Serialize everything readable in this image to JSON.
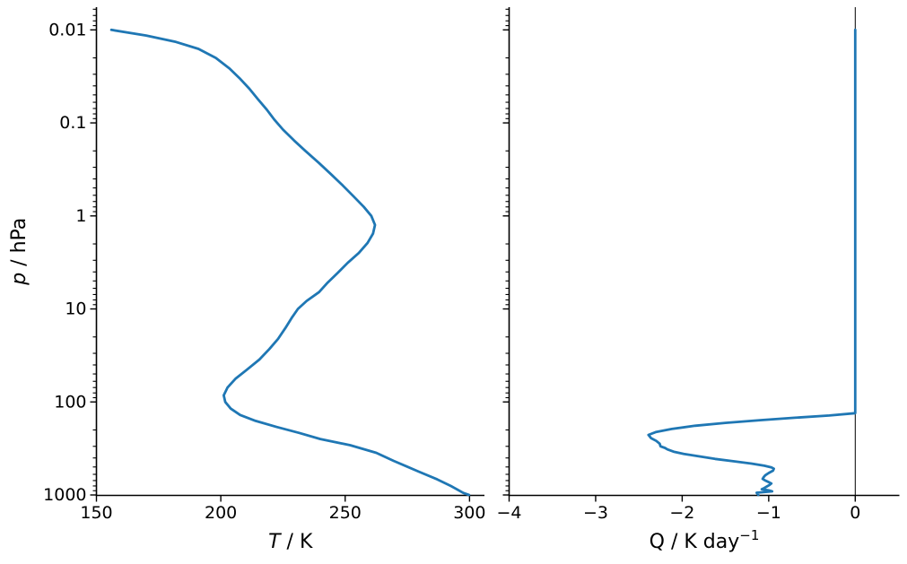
{
  "figure": {
    "background": "#ffffff",
    "curve_color": "#1f77b4",
    "axis_color": "#000000"
  },
  "chart_data": [
    {
      "id": "temperature-profile",
      "type": "line",
      "title": "",
      "xlabel": {
        "var": "T",
        "var_italic": true,
        "sep": " / ",
        "unit": "K",
        "sup": ""
      },
      "ylabel": {
        "var": "p",
        "var_italic": true,
        "sep": " / ",
        "unit": "hPa",
        "sup": ""
      },
      "xlim": [
        150,
        306
      ],
      "xticks": [
        150,
        200,
        250,
        300
      ],
      "xtick_labels": [
        "150",
        "200",
        "250",
        "300"
      ],
      "yscale": "log",
      "y_axis_inverted": true,
      "ylim_bottom_top": [
        1011,
        0.0057
      ],
      "yticks": [
        0.01,
        0.1,
        1,
        10,
        100,
        1000
      ],
      "ytick_labels": [
        "0.01",
        "0.1",
        "1",
        "10",
        "100",
        "1000"
      ],
      "y_minor_ticks": true,
      "grid": false,
      "legend": null,
      "axvline_x": null,
      "series": [
        {
          "name": "temperature",
          "color": "#1f77b4",
          "point_format": [
            "pressure_hPa",
            "T_K"
          ],
          "points": [
            [
              0.01,
              156.0
            ],
            [
              0.0115,
              170.0
            ],
            [
              0.0135,
              182.0
            ],
            [
              0.016,
              191.0
            ],
            [
              0.02,
              198.0
            ],
            [
              0.026,
              203.5
            ],
            [
              0.033,
              207.5
            ],
            [
              0.043,
              211.5
            ],
            [
              0.056,
              215.0
            ],
            [
              0.072,
              218.5
            ],
            [
              0.092,
              221.5
            ],
            [
              0.118,
              225.0
            ],
            [
              0.155,
              229.5
            ],
            [
              0.2,
              234.0
            ],
            [
              0.27,
              239.5
            ],
            [
              0.36,
              244.5
            ],
            [
              0.47,
              249.0
            ],
            [
              0.62,
              253.5
            ],
            [
              0.8,
              257.5
            ],
            [
              1.0,
              260.5
            ],
            [
              1.25,
              262.0
            ],
            [
              1.55,
              261.2
            ],
            [
              1.95,
              259.0
            ],
            [
              2.5,
              255.5
            ],
            [
              3.2,
              251.0
            ],
            [
              4.1,
              247.0
            ],
            [
              5.2,
              243.0
            ],
            [
              6.6,
              239.5
            ],
            [
              8.2,
              234.5
            ],
            [
              10,
              231.0
            ],
            [
              12.5,
              228.5
            ],
            [
              16,
              226.0
            ],
            [
              21,
              223.0
            ],
            [
              27,
              219.5
            ],
            [
              35,
              215.5
            ],
            [
              45,
              210.5
            ],
            [
              56,
              206.0
            ],
            [
              70,
              202.7
            ],
            [
              85,
              201.2
            ],
            [
              100,
              201.8
            ],
            [
              118,
              204.0
            ],
            [
              138,
              207.8
            ],
            [
              160,
              214.0
            ],
            [
              186,
              222.5
            ],
            [
              215,
              231.5
            ],
            [
              250,
              240.0
            ],
            [
              292,
              252.0
            ],
            [
              352,
              262.5
            ],
            [
              430,
              269.5
            ],
            [
              490,
              274.5
            ],
            [
              560,
              279.5
            ],
            [
              680,
              287.0
            ],
            [
              800,
              292.5
            ],
            [
              950,
              297.5
            ],
            [
              1000,
              299.8
            ]
          ]
        }
      ]
    },
    {
      "id": "heating-rate-profile",
      "type": "line",
      "title": "",
      "xlabel": {
        "var": "Q",
        "var_italic": false,
        "sep": " / ",
        "unit": "K day",
        "sup": "−1"
      },
      "ylabel": null,
      "xlim": [
        -4,
        0.51
      ],
      "xticks": [
        -4,
        -3,
        -2,
        -1,
        0
      ],
      "xtick_labels": [
        "−4",
        "−3",
        "−2",
        "−1",
        "0"
      ],
      "yscale": "log",
      "y_axis_inverted": true,
      "ylim_bottom_top": [
        1011,
        0.0057
      ],
      "yticks": [
        0.01,
        0.1,
        1,
        10,
        100,
        1000
      ],
      "ytick_labels": [],
      "y_minor_ticks": true,
      "grid": false,
      "legend": null,
      "axvline_x": 0,
      "series": [
        {
          "name": "heating_rate",
          "color": "#1f77b4",
          "point_format": [
            "pressure_hPa",
            "Q_K_per_day"
          ],
          "points": [
            [
              0.01,
              0.0
            ],
            [
              0.05,
              0.0
            ],
            [
              0.2,
              0.0
            ],
            [
              1,
              0.0
            ],
            [
              5,
              0.0
            ],
            [
              20,
              0.0
            ],
            [
              60,
              0.0
            ],
            [
              100,
              0.0
            ],
            [
              120,
              0.0
            ],
            [
              132,
              0.0
            ],
            [
              140,
              -0.3
            ],
            [
              148,
              -0.7
            ],
            [
              157,
              -1.1
            ],
            [
              168,
              -1.5
            ],
            [
              180,
              -1.85
            ],
            [
              195,
              -2.12
            ],
            [
              210,
              -2.3
            ],
            [
              226,
              -2.39
            ],
            [
              245,
              -2.36
            ],
            [
              262,
              -2.3
            ],
            [
              281,
              -2.26
            ],
            [
              300,
              -2.25
            ],
            [
              312,
              -2.2
            ],
            [
              324,
              -2.17
            ],
            [
              342,
              -2.1
            ],
            [
              362,
              -1.98
            ],
            [
              385,
              -1.8
            ],
            [
              410,
              -1.62
            ],
            [
              435,
              -1.4
            ],
            [
              460,
              -1.2
            ],
            [
              485,
              -1.05
            ],
            [
              505,
              -0.97
            ],
            [
              522,
              -0.94
            ],
            [
              548,
              -0.95
            ],
            [
              580,
              -1.0
            ],
            [
              615,
              -1.04
            ],
            [
              645,
              -1.06
            ],
            [
              672,
              -1.07
            ],
            [
              700,
              -1.04
            ],
            [
              728,
              -1.0
            ],
            [
              753,
              -0.97
            ],
            [
              780,
              -0.99
            ],
            [
              810,
              -1.02
            ],
            [
              840,
              -1.05
            ],
            [
              867,
              -1.08
            ],
            [
              893,
              -1.0
            ],
            [
              915,
              -0.96
            ],
            [
              946,
              -1.14
            ],
            [
              1000,
              -1.12
            ]
          ]
        }
      ]
    }
  ]
}
